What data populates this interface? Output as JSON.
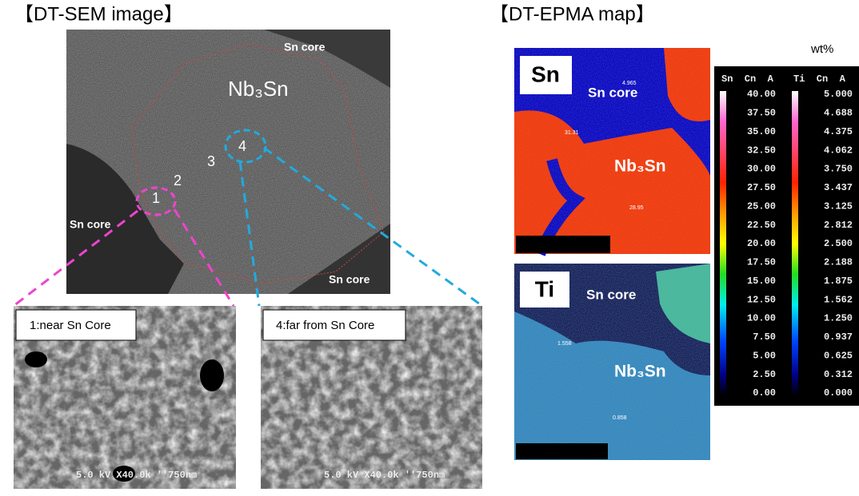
{
  "sem": {
    "title": "【DT-SEM image】",
    "nb3sn": "Nb₃Sn",
    "sn_core": [
      "Sn core",
      "Sn core",
      "Sn core"
    ],
    "points": [
      "1",
      "2",
      "3",
      "4"
    ],
    "insets": [
      {
        "label": "1:near Sn Core",
        "scale": "5.0 kV X40.0k ''750nm"
      },
      {
        "label": "4:far from Sn Core",
        "scale": "5.0 kV X40.0k ''750nm"
      }
    ]
  },
  "epma": {
    "title": "【DT-EPMA map】",
    "unit": "wt%",
    "panels": [
      {
        "element": "Sn",
        "sn_core": "Sn core",
        "nb3sn": "Nb₃Sn",
        "readings": [
          "4.965",
          "31.31",
          "28.95"
        ]
      },
      {
        "element": "Ti",
        "sn_core": "Sn core",
        "nb3sn": "Nb₃Sn",
        "readings": [
          "1.558",
          "0.858"
        ]
      }
    ],
    "scale": {
      "headers": [
        "Sn  Cn  A",
        "Ti  Cn  A"
      ],
      "sn": [
        "40.00",
        "37.50",
        "35.00",
        "32.50",
        "30.00",
        "27.50",
        "25.00",
        "22.50",
        "20.00",
        "17.50",
        "15.00",
        "12.50",
        "10.00",
        "7.50",
        "5.00",
        "2.50",
        "0.00"
      ],
      "ti": [
        "5.000",
        "4.688",
        "4.375",
        "4.062",
        "3.750",
        "3.437",
        "3.125",
        "2.812",
        "2.500",
        "2.188",
        "1.875",
        "1.562",
        "1.250",
        "0.937",
        "0.625",
        "0.312",
        "0.000"
      ]
    }
  }
}
